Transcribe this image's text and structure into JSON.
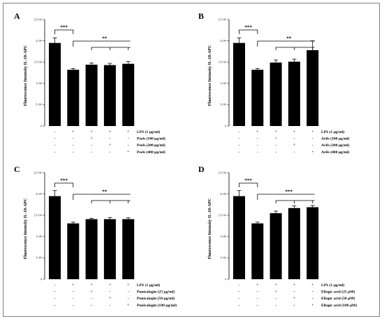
{
  "chart_data": [
    {
      "type": "bar",
      "panel": "A",
      "ylabel": "Fluorescence Intensity IL-10-APC",
      "yticks": [
        "0",
        "5×10³",
        "1×10⁴",
        "1.5×10⁴",
        "2×10⁴",
        "2.5×10⁴"
      ],
      "ylim": [
        0,
        25000
      ],
      "values": [
        19500,
        13200,
        14400,
        14300,
        14600
      ],
      "errors": [
        1200,
        300,
        400,
        400,
        500
      ],
      "conditions": [
        {
          "label": "LPS  (1 μg/ml)",
          "signs": [
            "-",
            "+",
            "+",
            "+",
            "+"
          ]
        },
        {
          "label": "Peels (100 μg/ml)",
          "signs": [
            "-",
            "-",
            "+",
            "-",
            "-"
          ]
        },
        {
          "label": "Peels (200 μg/ml)",
          "signs": [
            "-",
            "-",
            "-",
            "+",
            "-"
          ]
        },
        {
          "label": "Peels (400 μg/ml)",
          "signs": [
            "-",
            "-",
            "-",
            "-",
            "+"
          ]
        }
      ],
      "sig": [
        {
          "label": "***",
          "from": 0,
          "to": [
            1
          ]
        },
        {
          "label": "**",
          "from": 1,
          "to": [
            2,
            3,
            4
          ]
        }
      ]
    },
    {
      "type": "bar",
      "panel": "B",
      "ylabel": "Fluorescence Intensity IL-10-APC",
      "yticks": [
        "0",
        "5×10³",
        "1×10⁴",
        "1.5×10⁴",
        "2×10⁴",
        "2.5×10⁴"
      ],
      "ylim": [
        0,
        25000
      ],
      "values": [
        19500,
        13200,
        14900,
        15100,
        17800
      ],
      "errors": [
        1200,
        300,
        600,
        600,
        2200
      ],
      "conditions": [
        {
          "label": "LPS  (1 μg/ml)",
          "signs": [
            "-",
            "+",
            "+",
            "+",
            "+"
          ]
        },
        {
          "label": "Arils  (100 μg/ml)",
          "signs": [
            "-",
            "-",
            "+",
            "-",
            "-"
          ]
        },
        {
          "label": "Arils  (200 μg/ml)",
          "signs": [
            "-",
            "-",
            "-",
            "+",
            "-"
          ]
        },
        {
          "label": "Arils  (400 μg/ml)",
          "signs": [
            "-",
            "-",
            "-",
            "-",
            "+"
          ]
        }
      ],
      "sig": [
        {
          "label": "***",
          "from": 0,
          "to": [
            1
          ]
        },
        {
          "label": "**",
          "from": 1,
          "to": [
            2,
            3,
            4
          ]
        }
      ]
    },
    {
      "type": "bar",
      "panel": "C",
      "ylabel": "Fluorescence Intensity IL-10-APC",
      "yticks": [
        "0",
        "5×10³",
        "1×10⁴",
        "1.5×10⁴",
        "2×10⁴",
        "2.5×10⁴"
      ],
      "ylim": [
        0,
        25000
      ],
      "values": [
        19500,
        13100,
        14100,
        14100,
        14100
      ],
      "errors": [
        1300,
        300,
        200,
        400,
        300
      ],
      "conditions": [
        {
          "label": "LPS  (1 μg/ml)",
          "signs": [
            "-",
            "+",
            "+",
            "+",
            "+"
          ]
        },
        {
          "label": "Punicalagin (25 μg/ml)",
          "signs": [
            "-",
            "-",
            "+",
            "-",
            "-"
          ]
        },
        {
          "label": "Punicalagin (50 μg/ml)",
          "signs": [
            "-",
            "-",
            "-",
            "+",
            "-"
          ]
        },
        {
          "label": "Punicalagin (100 μg/ml)",
          "signs": [
            "-",
            "-",
            "-",
            "-",
            "+"
          ]
        }
      ],
      "sig": [
        {
          "label": "***",
          "from": 0,
          "to": [
            1
          ]
        },
        {
          "label": "**",
          "from": 1,
          "to": [
            2,
            3,
            4
          ]
        }
      ]
    },
    {
      "type": "bar",
      "panel": "D",
      "ylabel": "Fluorescence Intensity IL-10-APC",
      "yticks": [
        "0",
        "5×10³",
        "1×10⁴",
        "1.5×10⁴",
        "2×10⁴",
        "2.5×10⁴"
      ],
      "ylim": [
        0,
        25000
      ],
      "values": [
        19500,
        13100,
        15500,
        16700,
        16900
      ],
      "errors": [
        1300,
        300,
        500,
        500,
        400
      ],
      "conditions": [
        {
          "label": "LPS  (1 μg/ml)",
          "signs": [
            "-",
            "+",
            "+",
            "+",
            "+"
          ]
        },
        {
          "label": "Ellagic acid (25 μM)",
          "signs": [
            "-",
            "-",
            "+",
            "-",
            "-"
          ]
        },
        {
          "label": "Ellagic acid (50 μM)",
          "signs": [
            "-",
            "-",
            "-",
            "+",
            "-"
          ]
        },
        {
          "label": "Ellagic acid (100 μM)",
          "signs": [
            "-",
            "-",
            "-",
            "-",
            "+"
          ]
        }
      ],
      "sig": [
        {
          "label": "***",
          "from": 0,
          "to": [
            1
          ]
        },
        {
          "label": "***",
          "from": 1,
          "to": [
            2,
            3,
            4
          ]
        }
      ]
    }
  ]
}
